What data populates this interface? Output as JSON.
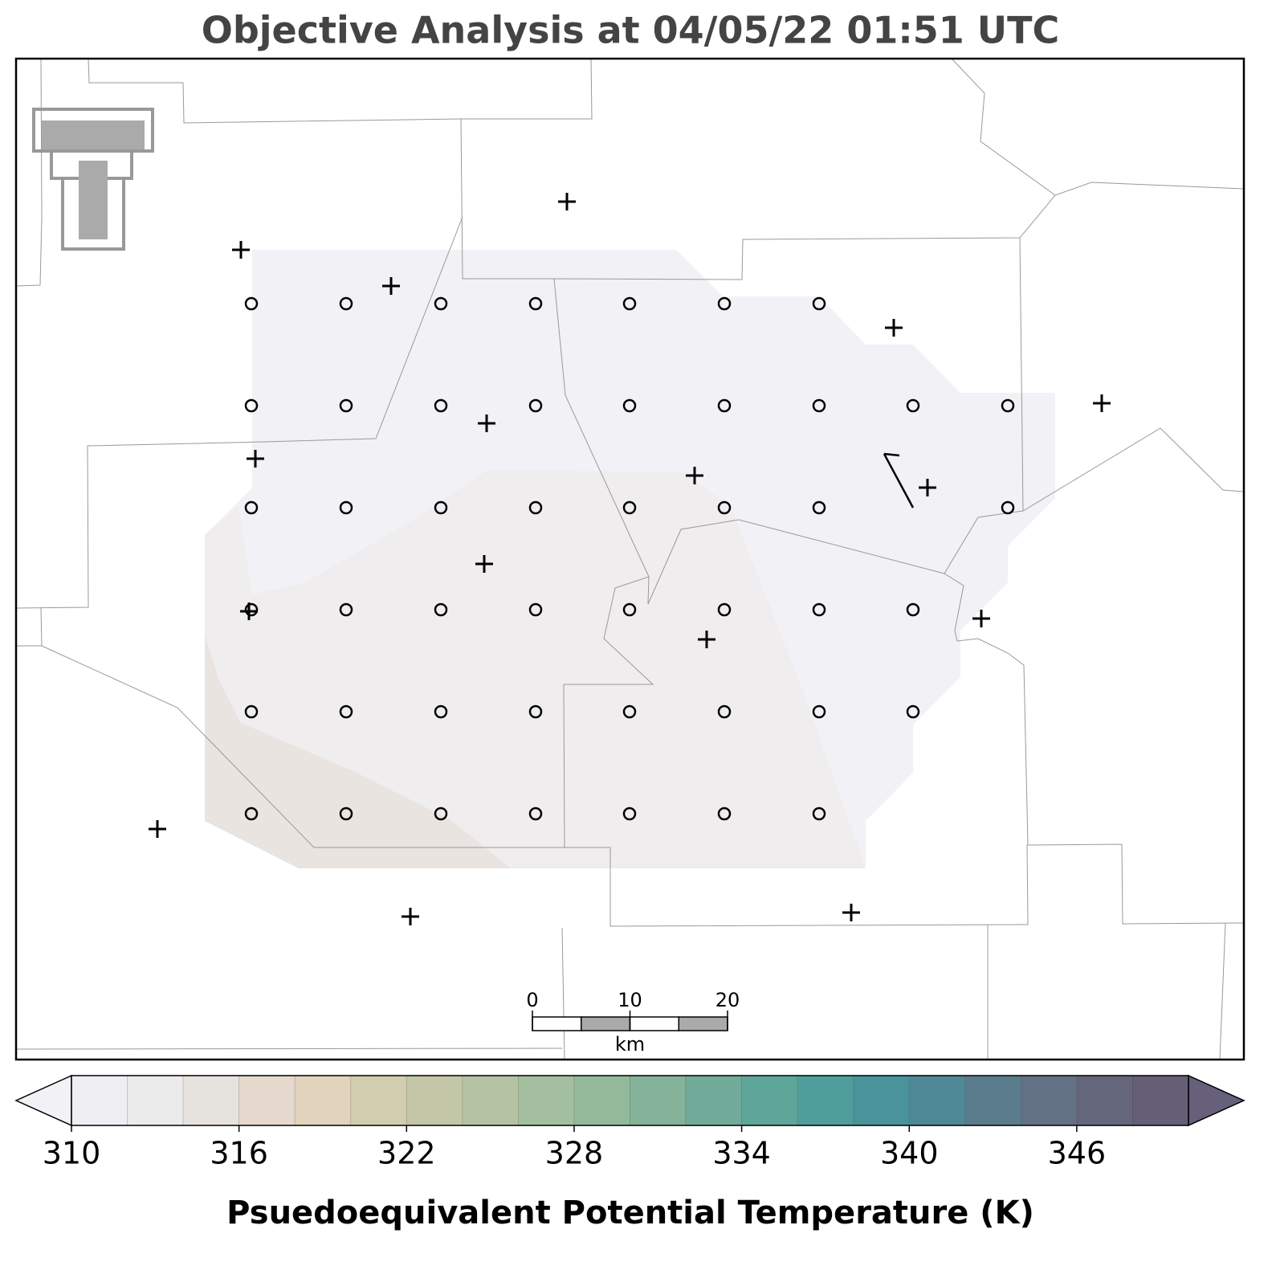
{
  "title": "Objective Analysis at 04/05/22 01:51 UTC",
  "colorbar": {
    "label": "Psuedoequivalent Potential Temperature (K)",
    "boundaries": [
      310,
      312,
      314,
      316,
      318,
      320,
      322,
      324,
      326,
      328,
      330,
      332,
      334,
      336,
      338,
      340,
      342,
      344,
      346,
      348,
      350
    ],
    "colors": [
      "#eeeef3",
      "#ecebec",
      "#e6e2de",
      "#e4d9cc",
      "#e1d3bc",
      "#d3cdaf",
      "#c4c7a7",
      "#b5c3a4",
      "#a3bf9f",
      "#93b99a",
      "#84b399",
      "#72ab99",
      "#5fa69a",
      "#4f9e9b",
      "#4a939a",
      "#4f8997",
      "#5a7c8d",
      "#627183",
      "#64667b",
      "#655e76"
    ],
    "under_color": "#f1f1f6",
    "over_color": "#67607a",
    "ticks": [
      310,
      316,
      322,
      328,
      334,
      340,
      346
    ]
  },
  "scale_bar": {
    "ticks": [
      0,
      10,
      20
    ],
    "unit": "km"
  }
}
